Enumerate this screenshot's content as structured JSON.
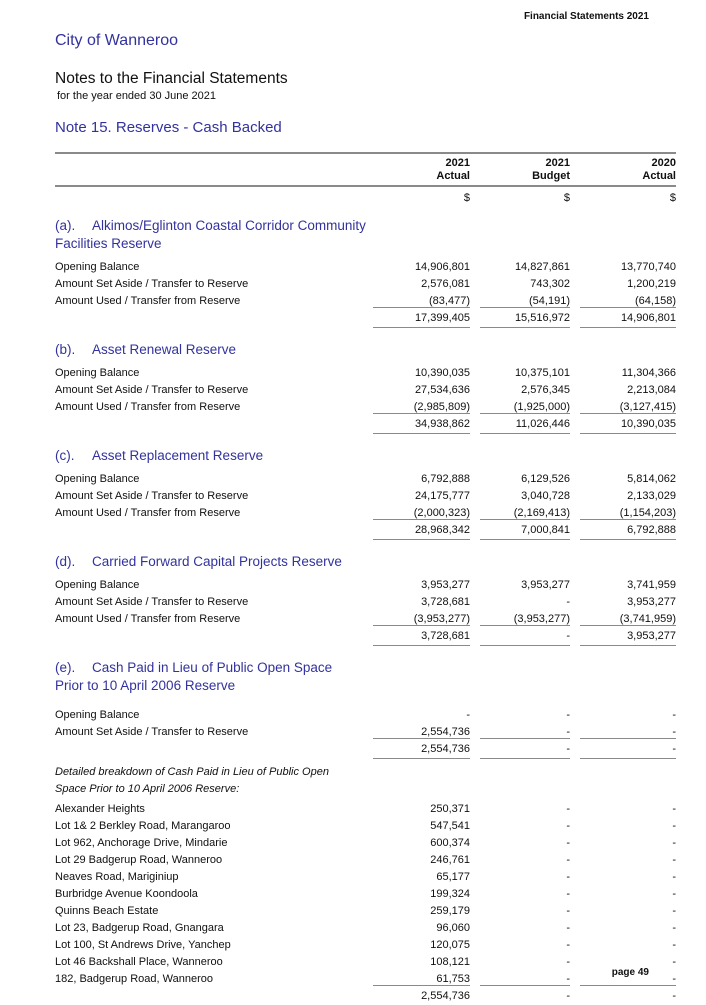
{
  "header": {
    "right_text": "Financial Statements 2021"
  },
  "titles": {
    "org": "City of Wanneroo",
    "doc": "Notes to the Financial Statements",
    "period": "for the year ended 30 June 2021",
    "note": "Note 15. Reserves - Cash Backed"
  },
  "table": {
    "columns": [
      {
        "year": "2021",
        "basis": "Actual",
        "unit": "$"
      },
      {
        "year": "2021",
        "basis": "Budget",
        "unit": "$"
      },
      {
        "year": "2020",
        "basis": "Actual",
        "unit": "$"
      }
    ],
    "sections": {
      "a": {
        "label": "(a).",
        "title1": "Alkimos/Eglinton Coastal Corridor Community",
        "title2": "Facilities Reserve",
        "rows": [
          {
            "label": "Opening Balance",
            "values": [
              "14,906,801",
              "14,827,861",
              "13,770,740"
            ]
          },
          {
            "label": "Amount Set Aside / Transfer to Reserve",
            "values": [
              "2,576,081",
              "743,302",
              "1,200,219"
            ]
          },
          {
            "label": "Amount Used / Transfer from Reserve",
            "values": [
              "(83,477)",
              "(54,191)",
              "(64,158)"
            ]
          }
        ],
        "total": [
          "17,399,405",
          "15,516,972",
          "14,906,801"
        ]
      },
      "b": {
        "label": "(b).",
        "title1": "Asset Renewal Reserve",
        "rows": [
          {
            "label": "Opening Balance",
            "values": [
              "10,390,035",
              "10,375,101",
              "11,304,366"
            ]
          },
          {
            "label": "Amount Set Aside / Transfer to Reserve",
            "values": [
              "27,534,636",
              "2,576,345",
              "2,213,084"
            ]
          },
          {
            "label": "Amount Used / Transfer from Reserve",
            "values": [
              "(2,985,809)",
              "(1,925,000)",
              "(3,127,415)"
            ]
          }
        ],
        "total": [
          "34,938,862",
          "11,026,446",
          "10,390,035"
        ]
      },
      "c": {
        "label": "(c).",
        "title1": "Asset Replacement Reserve",
        "rows": [
          {
            "label": "Opening Balance",
            "values": [
              "6,792,888",
              "6,129,526",
              "5,814,062"
            ]
          },
          {
            "label": "Amount Set Aside / Transfer to Reserve",
            "values": [
              "24,175,777",
              "3,040,728",
              "2,133,029"
            ]
          },
          {
            "label": "Amount Used / Transfer from Reserve",
            "values": [
              "(2,000,323)",
              "(2,169,413)",
              "(1,154,203)"
            ]
          }
        ],
        "total": [
          "28,968,342",
          "7,000,841",
          "6,792,888"
        ]
      },
      "d": {
        "label": "(d).",
        "title1": "Carried Forward Capital Projects Reserve",
        "rows": [
          {
            "label": "Opening Balance",
            "values": [
              "3,953,277",
              "3,953,277",
              "3,741,959"
            ]
          },
          {
            "label": "Amount Set Aside / Transfer to Reserve",
            "values": [
              "3,728,681",
              "-",
              "3,953,277"
            ]
          },
          {
            "label": "Amount Used / Transfer from Reserve",
            "values": [
              "(3,953,277)",
              "(3,953,277)",
              "(3,741,959)"
            ]
          }
        ],
        "total": [
          "3,728,681",
          "-",
          "3,953,277"
        ]
      },
      "e": {
        "label": "(e).",
        "title1": "Cash Paid in Lieu of Public Open Space",
        "title2": "Prior to 10 April 2006 Reserve",
        "rows": [
          {
            "label": "Opening Balance",
            "values": [
              "-",
              "-",
              "-"
            ]
          },
          {
            "label": "Amount Set Aside / Transfer to Reserve",
            "values": [
              "2,554,736",
              "-",
              "-"
            ]
          }
        ],
        "total": [
          "2,554,736",
          "-",
          "-"
        ]
      }
    },
    "breakdown": {
      "note": "Detailed breakdown of Cash Paid in Lieu of Public Open Space Prior to 10 April 2006 Reserve:",
      "items": [
        {
          "label": "Alexander Heights",
          "values": [
            "250,371",
            "-",
            "-"
          ]
        },
        {
          "label": "Lot 1& 2 Berkley Road, Marangaroo",
          "values": [
            "547,541",
            "-",
            "-"
          ]
        },
        {
          "label": "Lot 962, Anchorage Drive, Mindarie",
          "values": [
            "600,374",
            "-",
            "-"
          ]
        },
        {
          "label": "Lot 29 Badgerup Road, Wanneroo",
          "values": [
            "246,761",
            "-",
            "-"
          ]
        },
        {
          "label": "Neaves Road, Mariginiup",
          "values": [
            "65,177",
            "-",
            "-"
          ]
        },
        {
          "label": "Burbridge Avenue Koondoola",
          "values": [
            "199,324",
            "-",
            "-"
          ]
        },
        {
          "label": "Quinns Beach Estate",
          "values": [
            "259,179",
            "-",
            "-"
          ]
        },
        {
          "label": "Lot 23, Badgerup Road, Gnangara",
          "values": [
            "96,060",
            "-",
            "-"
          ]
        },
        {
          "label": "Lot 100, St Andrews Drive, Yanchep",
          "values": [
            "120,075",
            "-",
            "-"
          ]
        },
        {
          "label": "Lot 46 Backshall Place, Wanneroo",
          "values": [
            "108,121",
            "-",
            "-"
          ]
        },
        {
          "label": "182, Badgerup Road, Wanneroo",
          "values": [
            "61,753",
            "-",
            "-"
          ]
        }
      ],
      "total": [
        "2,554,736",
        "-",
        "-"
      ]
    }
  },
  "footer": {
    "page": "page 49"
  },
  "colors": {
    "heading_blue": "#32329e",
    "rule_gray": "#8a8a8a"
  }
}
